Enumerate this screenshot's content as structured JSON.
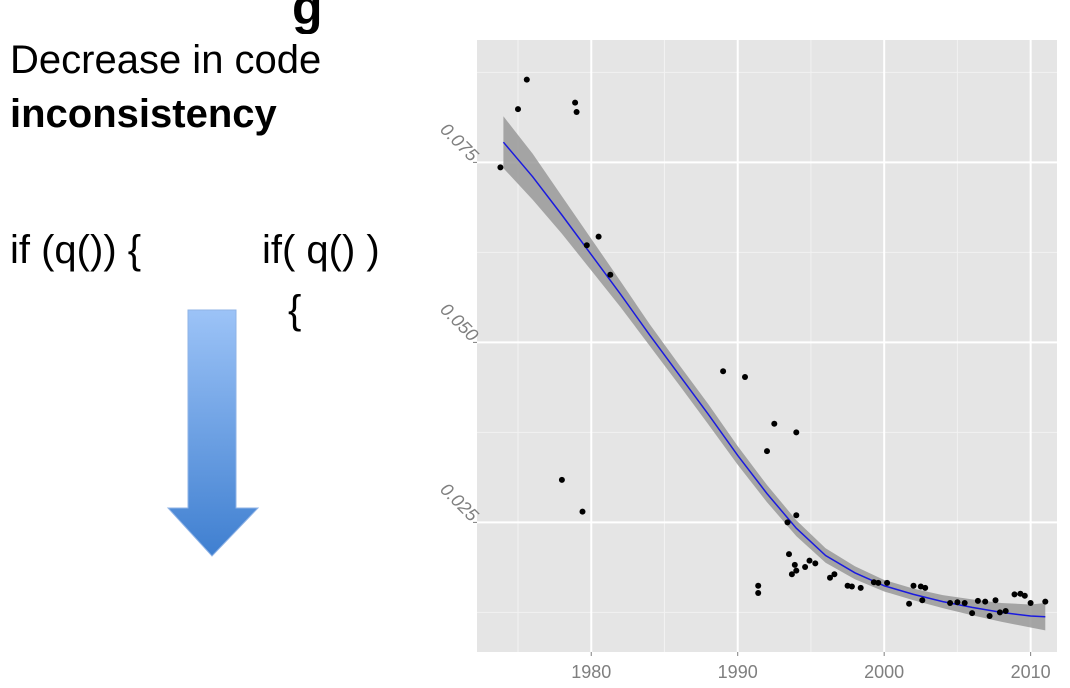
{
  "slide": {
    "title_fragment": "g",
    "heading_line1": "Decrease in code",
    "heading_line2": "inconsistency",
    "code_before": "if (q()) {",
    "code_after_line1": "if( q() )",
    "code_after_line2": "{"
  },
  "colors": {
    "panel_bg": "#e5e5e5",
    "grid": "#ffffff",
    "ribbon": "#999999",
    "trend_line": "#1a1adf",
    "points": "#000000",
    "arrow_top": "#9cc3f7",
    "arrow_bottom": "#3f7fd0"
  },
  "chart_data": {
    "type": "scatter",
    "title": "",
    "xlabel": "",
    "ylabel": "",
    "xlim": [
      1972.2,
      2011.8
    ],
    "ylim": [
      0.007,
      0.092
    ],
    "grid": true,
    "x_ticks": [
      1980,
      1990,
      2000,
      2010
    ],
    "x_tick_labels": [
      "1980",
      "1990",
      "2000",
      "2010"
    ],
    "y_ticks": [
      0.025,
      0.05,
      0.075
    ],
    "y_tick_labels": [
      "0.025",
      "0.050",
      "0.075"
    ],
    "points": [
      [
        1973.8,
        0.0743
      ],
      [
        1975.0,
        0.0824
      ],
      [
        1975.6,
        0.0865
      ],
      [
        1978.9,
        0.0833
      ],
      [
        1979.0,
        0.082
      ],
      [
        1979.7,
        0.0635
      ],
      [
        1980.5,
        0.0647
      ],
      [
        1981.3,
        0.0594
      ],
      [
        1978.0,
        0.0309
      ],
      [
        1979.4,
        0.0265
      ],
      [
        1989.0,
        0.046
      ],
      [
        1990.5,
        0.0452
      ],
      [
        1992.0,
        0.0349
      ],
      [
        1992.5,
        0.0387
      ],
      [
        1994.0,
        0.0375
      ],
      [
        1991.4,
        0.0162
      ],
      [
        1991.4,
        0.0152
      ],
      [
        1993.4,
        0.025
      ],
      [
        1993.5,
        0.0206
      ],
      [
        1994.0,
        0.026
      ],
      [
        1993.7,
        0.0178
      ],
      [
        1994.0,
        0.0183
      ],
      [
        1993.9,
        0.0191
      ],
      [
        1994.6,
        0.0188
      ],
      [
        1994.9,
        0.0197
      ],
      [
        1995.3,
        0.0193
      ],
      [
        1996.3,
        0.0173
      ],
      [
        1996.6,
        0.0178
      ],
      [
        1997.5,
        0.0162
      ],
      [
        1997.8,
        0.0161
      ],
      [
        1998.4,
        0.0159
      ],
      [
        1999.3,
        0.0167
      ],
      [
        1999.6,
        0.0166
      ],
      [
        2000.2,
        0.0166
      ],
      [
        2001.7,
        0.0137
      ],
      [
        2002.0,
        0.0162
      ],
      [
        2002.5,
        0.0161
      ],
      [
        2002.6,
        0.0142
      ],
      [
        2002.8,
        0.0159
      ],
      [
        2004.5,
        0.0138
      ],
      [
        2005.0,
        0.0139
      ],
      [
        2005.5,
        0.0138
      ],
      [
        2006.0,
        0.0124
      ],
      [
        2006.4,
        0.0141
      ],
      [
        2006.9,
        0.014
      ],
      [
        2007.2,
        0.012
      ],
      [
        2007.6,
        0.0142
      ],
      [
        2007.9,
        0.0125
      ],
      [
        2008.3,
        0.0127
      ],
      [
        2008.9,
        0.015
      ],
      [
        2009.3,
        0.0151
      ],
      [
        2009.6,
        0.0148
      ],
      [
        2010.0,
        0.0138
      ],
      [
        2011.0,
        0.014
      ]
    ],
    "smooth": {
      "x": [
        1974,
        1976,
        1978,
        1980,
        1982,
        1984,
        1986,
        1988,
        1990,
        1992,
        1994,
        1996,
        1998,
        2000,
        2002,
        2004,
        2006,
        2008,
        2010,
        2011
      ],
      "y": [
        0.0778,
        0.073,
        0.0677,
        0.0622,
        0.0567,
        0.051,
        0.0455,
        0.04,
        0.0343,
        0.029,
        0.0242,
        0.0204,
        0.018,
        0.0162,
        0.015,
        0.014,
        0.0132,
        0.0125,
        0.012,
        0.0119
      ],
      "lower": [
        0.0742,
        0.0698,
        0.0651,
        0.06,
        0.0549,
        0.0495,
        0.0441,
        0.0386,
        0.033,
        0.0278,
        0.0231,
        0.0194,
        0.0171,
        0.0154,
        0.0142,
        0.0131,
        0.0121,
        0.0112,
        0.0104,
        0.01
      ],
      "upper": [
        0.0814,
        0.0762,
        0.0703,
        0.0644,
        0.0585,
        0.0525,
        0.0469,
        0.0414,
        0.0356,
        0.0302,
        0.0253,
        0.0214,
        0.0189,
        0.017,
        0.0158,
        0.0149,
        0.0143,
        0.0138,
        0.0136,
        0.0138
      ]
    }
  }
}
